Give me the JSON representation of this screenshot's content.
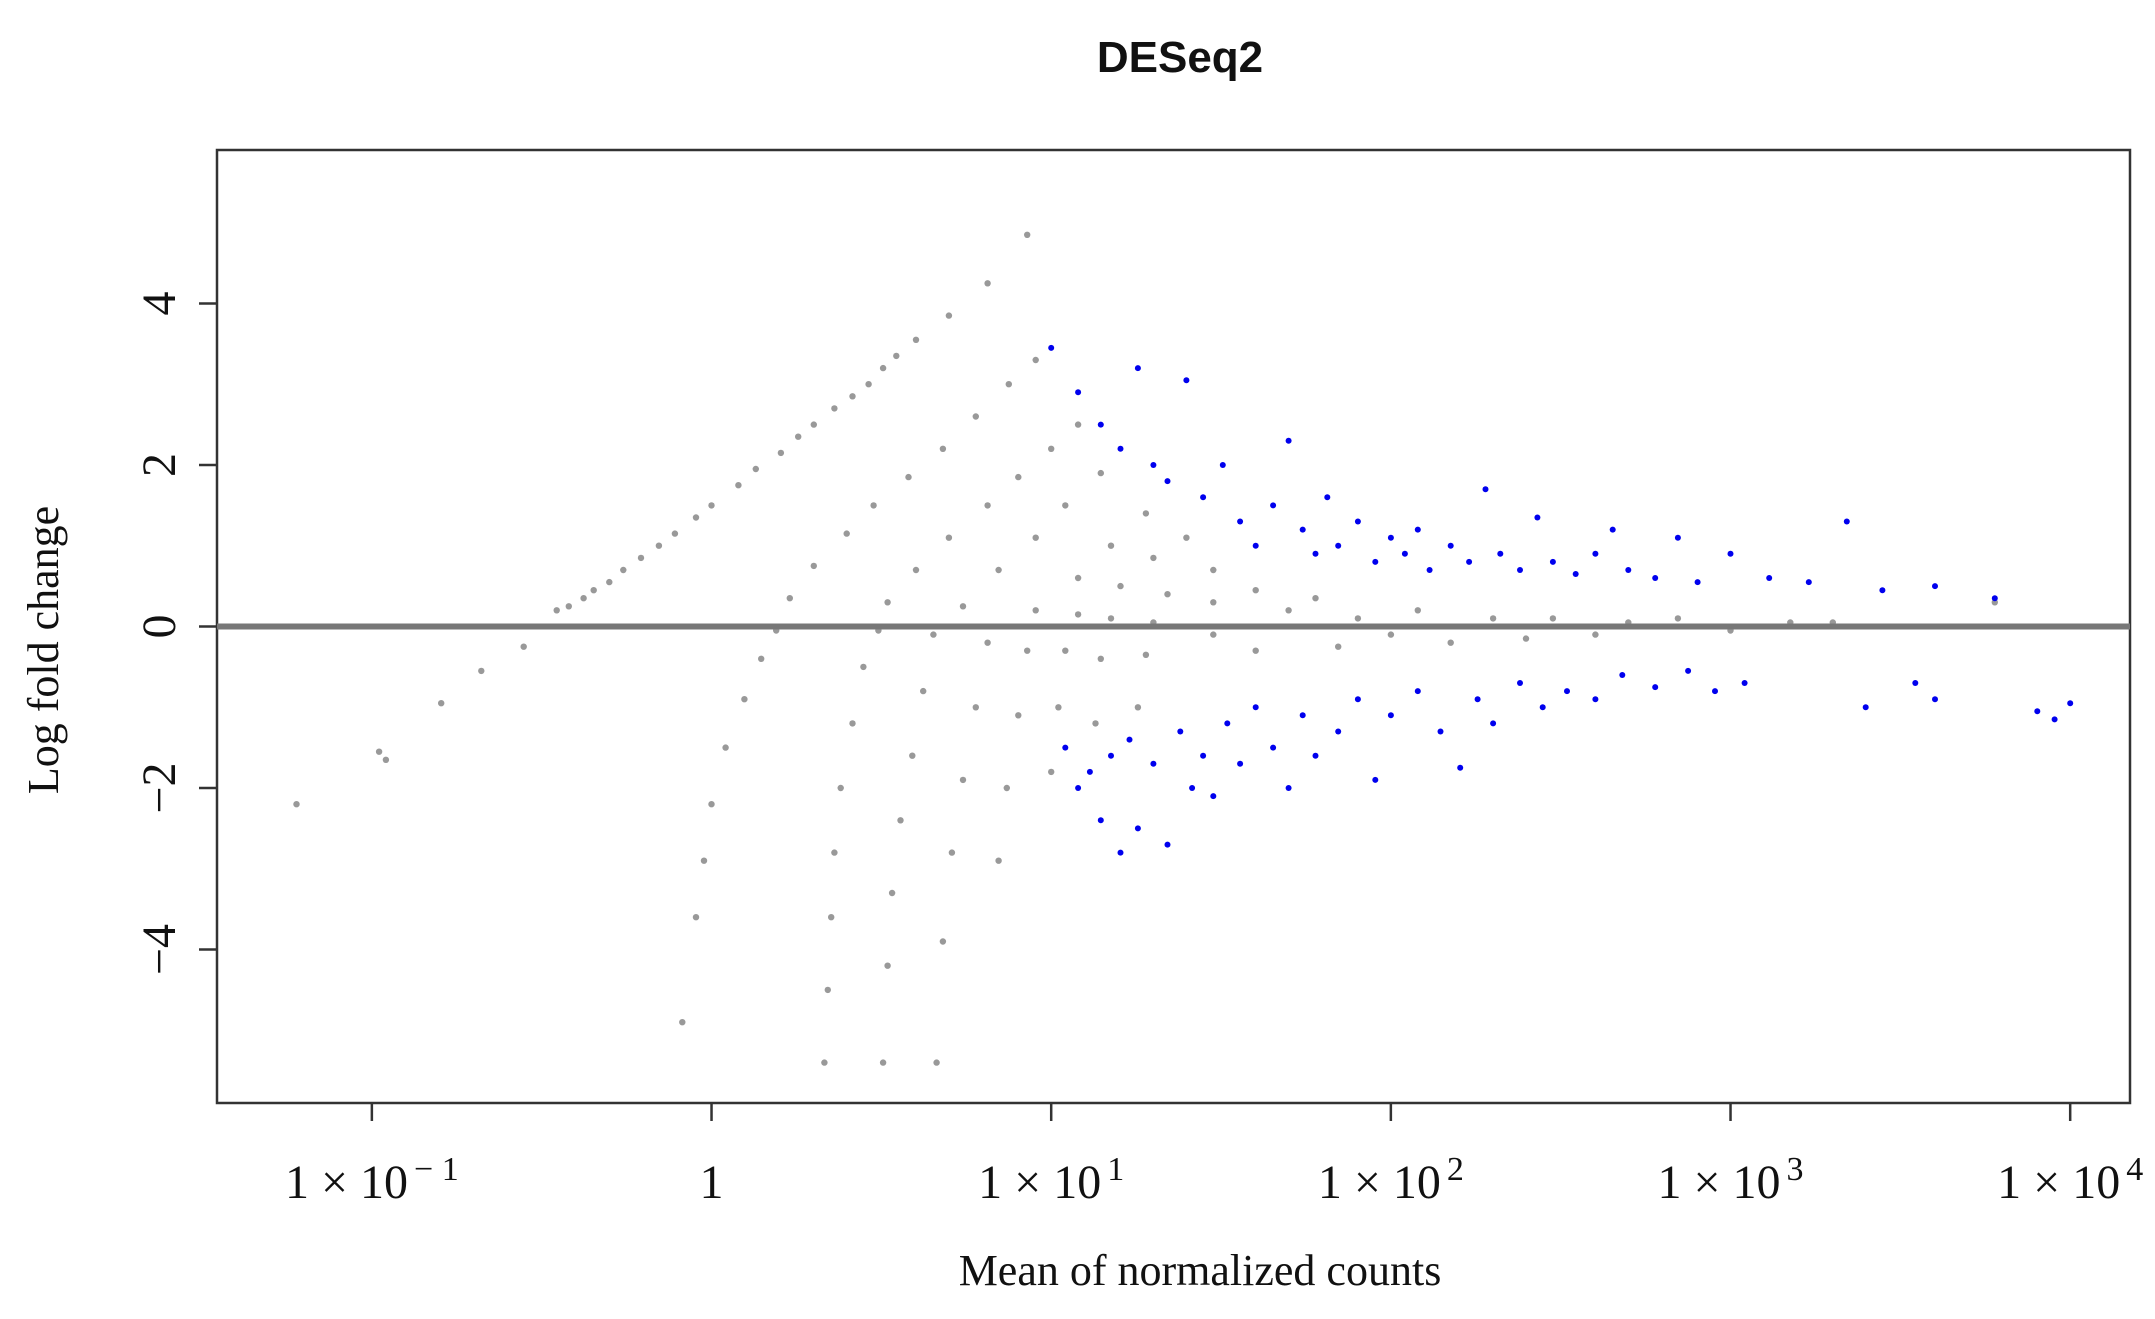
{
  "chart_data": {
    "type": "scatter",
    "title": "DESeq2",
    "xlabel": "Mean of normalized counts",
    "ylabel": "Log fold change",
    "x_scale": "log10",
    "xlim": [
      0.035,
      15000
    ],
    "ylim": [
      -5.9,
      5.9
    ],
    "x_ticks": [
      {
        "value": 0.1,
        "label": "1 × 10",
        "sup": "− 1"
      },
      {
        "value": 1,
        "label": "1",
        "sup": ""
      },
      {
        "value": 10,
        "label": "1 × 10",
        "sup": "1"
      },
      {
        "value": 100,
        "label": "1 × 10",
        "sup": "2"
      },
      {
        "value": 1000,
        "label": "1 × 10",
        "sup": "3"
      },
      {
        "value": 10000,
        "label": "1 × 10",
        "sup": "4"
      }
    ],
    "y_ticks": [
      {
        "value": -4,
        "label": "−4"
      },
      {
        "value": -2,
        "label": "−2"
      },
      {
        "value": 0,
        "label": "0"
      },
      {
        "value": 2,
        "label": "2"
      },
      {
        "value": 4,
        "label": "4"
      }
    ],
    "reference_line": {
      "y": 0,
      "color": "#777777"
    },
    "grid": false,
    "legend": "none",
    "series": [
      {
        "role": "not significant",
        "color": "#999999",
        "points": [
          [
            0.06,
            -2.2
          ],
          [
            0.105,
            -1.55
          ],
          [
            0.11,
            -1.65
          ],
          [
            0.16,
            -0.95
          ],
          [
            0.21,
            -0.55
          ],
          [
            0.28,
            -0.25
          ],
          [
            0.38,
            0.25
          ],
          [
            0.45,
            0.45
          ],
          [
            0.55,
            0.7
          ],
          [
            0.7,
            1.0
          ],
          [
            0.9,
            1.35
          ],
          [
            1.2,
            1.75
          ],
          [
            1.6,
            2.15
          ],
          [
            2.0,
            2.5
          ],
          [
            2.6,
            2.85
          ],
          [
            3.2,
            3.2
          ],
          [
            4.0,
            3.55
          ],
          [
            5.0,
            3.85
          ],
          [
            6.5,
            4.25
          ],
          [
            8.5,
            4.85
          ],
          [
            1.55,
            -0.05
          ],
          [
            1.4,
            -0.4
          ],
          [
            1.25,
            -0.9
          ],
          [
            1.1,
            -1.5
          ],
          [
            1.0,
            -2.2
          ],
          [
            0.95,
            -2.9
          ],
          [
            0.9,
            -3.6
          ],
          [
            0.82,
            -4.9
          ],
          [
            1.7,
            0.35
          ],
          [
            2.0,
            0.75
          ],
          [
            2.5,
            1.15
          ],
          [
            3.0,
            1.5
          ],
          [
            3.8,
            1.85
          ],
          [
            4.8,
            2.2
          ],
          [
            6.0,
            2.6
          ],
          [
            7.5,
            3.0
          ],
          [
            9.0,
            3.3
          ],
          [
            3.1,
            -0.05
          ],
          [
            2.8,
            -0.5
          ],
          [
            2.6,
            -1.2
          ],
          [
            2.4,
            -2.0
          ],
          [
            2.3,
            -2.8
          ],
          [
            2.25,
            -3.6
          ],
          [
            2.2,
            -4.5
          ],
          [
            2.15,
            -5.4
          ],
          [
            3.3,
            0.3
          ],
          [
            4.0,
            0.7
          ],
          [
            5.0,
            1.1
          ],
          [
            6.5,
            1.5
          ],
          [
            8.0,
            1.85
          ],
          [
            10.0,
            2.2
          ],
          [
            12.0,
            2.5
          ],
          [
            4.5,
            -0.1
          ],
          [
            4.2,
            -0.8
          ],
          [
            3.9,
            -1.6
          ],
          [
            3.6,
            -2.4
          ],
          [
            3.4,
            -3.3
          ],
          [
            3.3,
            -4.2
          ],
          [
            3.2,
            -5.4
          ],
          [
            5.5,
            0.25
          ],
          [
            7.0,
            0.7
          ],
          [
            9.0,
            1.1
          ],
          [
            11.0,
            1.5
          ],
          [
            14.0,
            1.9
          ],
          [
            6.5,
            -0.2
          ],
          [
            6.0,
            -1.0
          ],
          [
            5.5,
            -1.9
          ],
          [
            5.1,
            -2.8
          ],
          [
            4.8,
            -3.9
          ],
          [
            4.6,
            -5.4
          ],
          [
            9.0,
            0.2
          ],
          [
            12.0,
            0.6
          ],
          [
            15.0,
            1.0
          ],
          [
            19.0,
            1.4
          ],
          [
            8.5,
            -0.3
          ],
          [
            8.0,
            -1.1
          ],
          [
            7.4,
            -2.0
          ],
          [
            7.0,
            -2.9
          ],
          [
            12.0,
            0.15
          ],
          [
            16.0,
            0.5
          ],
          [
            20.0,
            0.85
          ],
          [
            25.0,
            1.1
          ],
          [
            11.0,
            -0.3
          ],
          [
            10.5,
            -1.0
          ],
          [
            10.0,
            -1.8
          ],
          [
            15.0,
            0.1
          ],
          [
            22.0,
            0.4
          ],
          [
            30.0,
            0.7
          ],
          [
            14.0,
            -0.4
          ],
          [
            13.5,
            -1.2
          ],
          [
            20.0,
            0.05
          ],
          [
            30.0,
            0.3
          ],
          [
            40.0,
            0.45
          ],
          [
            19.0,
            -0.35
          ],
          [
            18.0,
            -1.0
          ],
          [
            30.0,
            -0.1
          ],
          [
            40.0,
            -0.3
          ],
          [
            50.0,
            0.2
          ],
          [
            60.0,
            0.35
          ],
          [
            70.0,
            -0.25
          ],
          [
            80.0,
            0.1
          ],
          [
            100.0,
            -0.1
          ],
          [
            120.0,
            0.2
          ],
          [
            150.0,
            -0.2
          ],
          [
            200.0,
            0.1
          ],
          [
            250.0,
            -0.15
          ],
          [
            300.0,
            0.1
          ],
          [
            400.0,
            -0.1
          ],
          [
            500.0,
            0.05
          ],
          [
            700.0,
            0.1
          ],
          [
            1000.0,
            -0.05
          ],
          [
            1500.0,
            0.05
          ],
          [
            2000.0,
            0.05
          ],
          [
            6000.0,
            0.3
          ],
          [
            0.35,
            0.2
          ],
          [
            0.42,
            0.35
          ],
          [
            0.5,
            0.55
          ],
          [
            0.62,
            0.85
          ],
          [
            0.78,
            1.15
          ],
          [
            1.0,
            1.5
          ],
          [
            1.35,
            1.95
          ],
          [
            1.8,
            2.35
          ],
          [
            2.3,
            2.7
          ],
          [
            2.9,
            3.0
          ],
          [
            3.5,
            3.35
          ]
        ]
      },
      {
        "role": "significant",
        "color": "#0000ee",
        "points": [
          [
            10.0,
            3.45
          ],
          [
            12.0,
            2.9
          ],
          [
            14.0,
            2.5
          ],
          [
            16.0,
            2.2
          ],
          [
            18.0,
            3.2
          ],
          [
            20.0,
            2.0
          ],
          [
            22.0,
            1.8
          ],
          [
            25.0,
            3.05
          ],
          [
            28.0,
            1.6
          ],
          [
            32.0,
            2.0
          ],
          [
            36.0,
            1.3
          ],
          [
            40.0,
            1.0
          ],
          [
            45.0,
            1.5
          ],
          [
            50.0,
            2.3
          ],
          [
            55.0,
            1.2
          ],
          [
            60.0,
            0.9
          ],
          [
            65.0,
            1.6
          ],
          [
            70.0,
            1.0
          ],
          [
            80.0,
            1.3
          ],
          [
            90.0,
            0.8
          ],
          [
            100.0,
            1.1
          ],
          [
            110.0,
            0.9
          ],
          [
            120.0,
            1.2
          ],
          [
            130.0,
            0.7
          ],
          [
            150.0,
            1.0
          ],
          [
            170.0,
            0.8
          ],
          [
            190.0,
            1.7
          ],
          [
            210.0,
            0.9
          ],
          [
            240.0,
            0.7
          ],
          [
            270.0,
            1.35
          ],
          [
            300.0,
            0.8
          ],
          [
            350.0,
            0.65
          ],
          [
            400.0,
            0.9
          ],
          [
            450.0,
            1.2
          ],
          [
            500.0,
            0.7
          ],
          [
            600.0,
            0.6
          ],
          [
            700.0,
            1.1
          ],
          [
            800.0,
            0.55
          ],
          [
            1000.0,
            0.9
          ],
          [
            1300.0,
            0.6
          ],
          [
            1700.0,
            0.55
          ],
          [
            2200.0,
            1.3
          ],
          [
            2800.0,
            0.45
          ],
          [
            4000.0,
            0.5
          ],
          [
            6000.0,
            0.35
          ],
          [
            11.0,
            -1.5
          ],
          [
            12.0,
            -2.0
          ],
          [
            13.0,
            -1.8
          ],
          [
            14.0,
            -2.4
          ],
          [
            15.0,
            -1.6
          ],
          [
            16.0,
            -2.8
          ],
          [
            17.0,
            -1.4
          ],
          [
            18.0,
            -2.5
          ],
          [
            20.0,
            -1.7
          ],
          [
            22.0,
            -2.7
          ],
          [
            24.0,
            -1.3
          ],
          [
            26.0,
            -2.0
          ],
          [
            28.0,
            -1.6
          ],
          [
            30.0,
            -2.1
          ],
          [
            33.0,
            -1.2
          ],
          [
            36.0,
            -1.7
          ],
          [
            40.0,
            -1.0
          ],
          [
            45.0,
            -1.5
          ],
          [
            50.0,
            -2.0
          ],
          [
            55.0,
            -1.1
          ],
          [
            60.0,
            -1.6
          ],
          [
            70.0,
            -1.3
          ],
          [
            80.0,
            -0.9
          ],
          [
            90.0,
            -1.9
          ],
          [
            100.0,
            -1.1
          ],
          [
            120.0,
            -0.8
          ],
          [
            140.0,
            -1.3
          ],
          [
            160.0,
            -1.75
          ],
          [
            180.0,
            -0.9
          ],
          [
            200.0,
            -1.2
          ],
          [
            240.0,
            -0.7
          ],
          [
            280.0,
            -1.0
          ],
          [
            330.0,
            -0.8
          ],
          [
            400.0,
            -0.9
          ],
          [
            480.0,
            -0.6
          ],
          [
            600.0,
            -0.75
          ],
          [
            750.0,
            -0.55
          ],
          [
            900.0,
            -0.8
          ],
          [
            1100.0,
            -0.7
          ],
          [
            2500.0,
            -1.0
          ],
          [
            3500.0,
            -0.7
          ],
          [
            4000.0,
            -0.9
          ],
          [
            8000.0,
            -1.05
          ],
          [
            9000.0,
            -1.15
          ],
          [
            10000.0,
            -0.95
          ]
        ]
      }
    ]
  }
}
